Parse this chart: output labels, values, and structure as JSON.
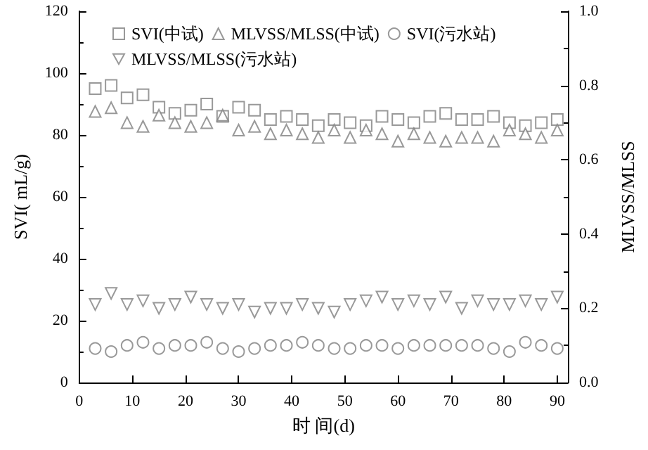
{
  "chart_data": {
    "type": "scatter",
    "xlabel": "时 间(d)",
    "ylabel": "SVI( mL/g)",
    "y2label": "MLVSS/MLSS",
    "x": [
      3,
      6,
      9,
      12,
      15,
      18,
      21,
      24,
      27,
      30,
      33,
      36,
      39,
      42,
      45,
      48,
      51,
      54,
      57,
      60,
      63,
      66,
      69,
      72,
      75,
      78,
      81,
      84,
      87,
      90
    ],
    "series": [
      {
        "name": "SVI(中试)",
        "color": "#808080",
        "marker": "square",
        "values": [
          95,
          96,
          92,
          93,
          89,
          87,
          88,
          90,
          86,
          89,
          88,
          85,
          86,
          85,
          83,
          85,
          84,
          83,
          86,
          85,
          84,
          86,
          87,
          85,
          85,
          86,
          84,
          83,
          84,
          85
        ]
      },
      {
        "name": "MLVSS/MLSS(中试)",
        "color": "#808080",
        "marker": "triangle",
        "axis": "y2",
        "values": [
          0.73,
          0.74,
          0.7,
          0.69,
          0.72,
          0.7,
          0.69,
          0.7,
          0.72,
          0.68,
          0.69,
          0.67,
          0.68,
          0.67,
          0.66,
          0.68,
          0.66,
          0.68,
          0.67,
          0.65,
          0.67,
          0.66,
          0.65,
          0.66,
          0.66,
          0.65,
          0.68,
          0.67,
          0.66,
          0.68
        ]
      },
      {
        "name": "SVI(污水站)",
        "color": "#808080",
        "marker": "circle",
        "values": [
          11,
          10,
          12,
          13,
          11,
          12,
          12,
          13,
          11,
          10,
          11,
          12,
          12,
          13,
          12,
          11,
          11,
          12,
          12,
          11,
          12,
          12,
          12,
          12,
          12,
          11,
          10,
          13,
          12,
          11
        ]
      },
      {
        "name": "MLVSS/MLSS(污水站)",
        "color": "#808080",
        "marker": "triangle-down",
        "axis": "y2",
        "values": [
          0.21,
          0.24,
          0.21,
          0.22,
          0.2,
          0.21,
          0.23,
          0.21,
          0.2,
          0.21,
          0.19,
          0.2,
          0.2,
          0.21,
          0.2,
          0.19,
          0.21,
          0.22,
          0.23,
          0.21,
          0.22,
          0.21,
          0.23,
          0.2,
          0.22,
          0.21,
          0.21,
          0.22,
          0.21,
          0.23
        ]
      }
    ],
    "xlim": [
      0,
      92
    ],
    "xticks": [
      0,
      10,
      20,
      30,
      40,
      50,
      60,
      70,
      80,
      90
    ],
    "ylim": [
      0,
      120
    ],
    "yticks": [
      0,
      20,
      40,
      60,
      80,
      100,
      120
    ],
    "y2lim": [
      0,
      1
    ],
    "y2ticks": [
      {
        "value": 0,
        "label": "0.0"
      },
      0.2,
      0.4,
      0.6,
      0.8,
      {
        "value": 1,
        "label": "1.0"
      }
    ],
    "legend": "top",
    "grid": false
  }
}
